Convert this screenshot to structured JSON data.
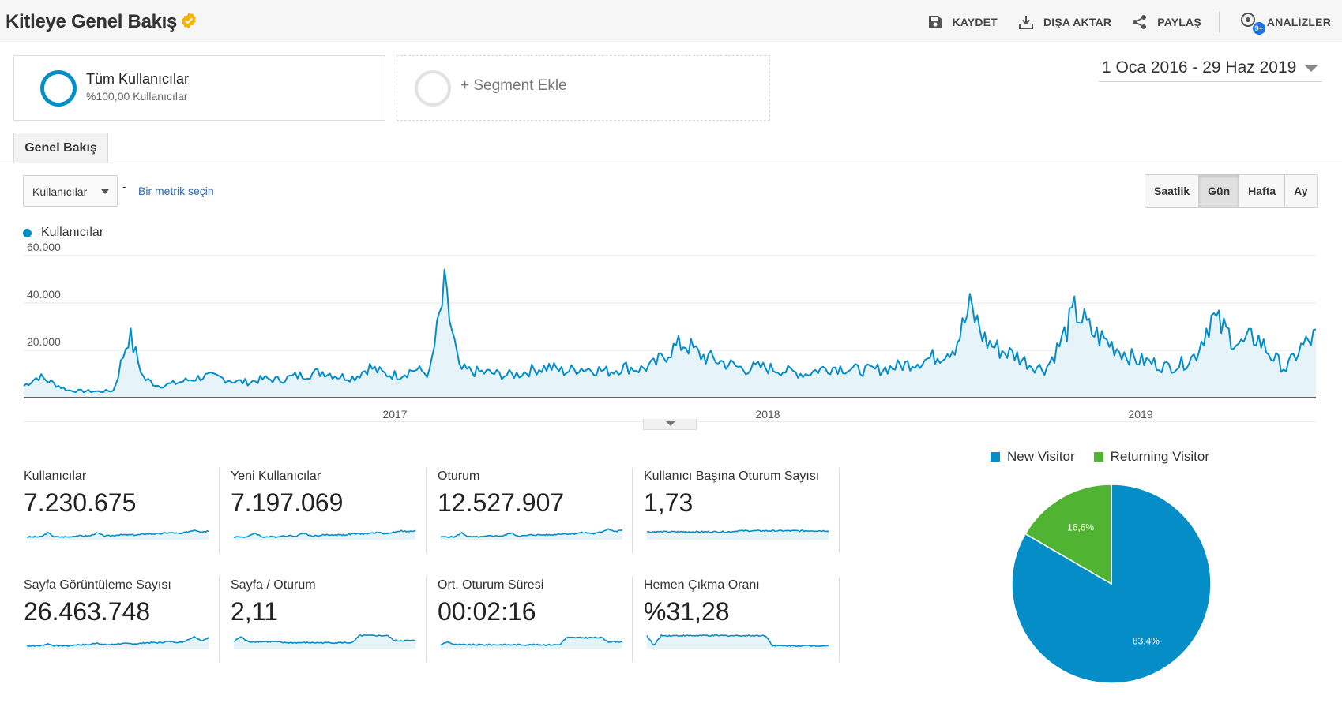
{
  "header": {
    "title": "Kitleye Genel Bakış",
    "actions": {
      "save": "KAYDET",
      "export": "DIŞA AKTAR",
      "share": "PAYLAŞ",
      "insights": "ANALİZLER",
      "insights_badge": "9+"
    }
  },
  "segments": {
    "primary": {
      "name": "Tüm Kullanıcılar",
      "detail": "%100,00 Kullanıcılar"
    },
    "add": "+ Segment Ekle"
  },
  "date_range": "1 Oca 2016 - 29 Haz 2019",
  "tabs": [
    "Genel Bakış"
  ],
  "metric_selector": {
    "value": "Kullanıcılar",
    "separator": "-",
    "pick_label": "Bir metrik seçin"
  },
  "granularity": {
    "options": [
      "Saatlik",
      "Gün",
      "Hafta",
      "Ay"
    ],
    "selected": "Gün"
  },
  "colors": {
    "accent": "#058dc7",
    "returning": "#50b432"
  },
  "chart_data": [
    {
      "type": "area",
      "series": [
        {
          "name": "Kullanıcılar",
          "values": [
            5000,
            9000,
            6000,
            3000,
            2800,
            2600,
            3000,
            27000,
            8000,
            5000,
            6000,
            7500,
            9000,
            8500,
            7000,
            6500,
            8000,
            7500,
            9000,
            10000,
            11000,
            9000,
            8500,
            13000,
            10000,
            9500,
            12000,
            10000,
            45000,
            12000,
            11000,
            10500,
            9500,
            10000,
            12000,
            13000,
            11000,
            12500,
            12000,
            11000,
            13000,
            12000,
            14000,
            20000,
            23000,
            18000,
            16000,
            14000,
            12000,
            13000,
            12000,
            11000,
            10000,
            12000,
            13000,
            12000,
            11500,
            12000,
            13000,
            14500,
            16000,
            18000,
            22000,
            38000,
            24000,
            20000,
            18000,
            14000,
            12000,
            23000,
            37000,
            28000,
            24000,
            20000,
            16000,
            15000,
            13000,
            14000,
            18000,
            34000,
            28000,
            22000,
            26000,
            18000,
            12000,
            21000,
            26000
          ]
        }
      ],
      "yticks": [
        "60.000",
        "40.000",
        "20.000"
      ],
      "ylim": [
        0,
        60000
      ],
      "xticks": [
        "2017",
        "2018",
        "2019"
      ]
    },
    {
      "type": "pie",
      "series": [
        {
          "name": "New Visitor",
          "value": 83.4,
          "label": "83,4%",
          "color": "#058dc7"
        },
        {
          "name": "Returning Visitor",
          "value": 16.6,
          "label": "16,6%",
          "color": "#50b432"
        }
      ]
    }
  ],
  "metrics": [
    {
      "label": "Kullanıcılar",
      "value": "7.230.675",
      "spark": [
        2,
        2,
        2,
        6,
        2,
        2,
        2,
        3,
        3,
        3,
        6,
        3,
        3,
        4,
        4,
        4,
        4,
        5,
        5,
        5,
        6,
        6,
        5,
        7,
        9,
        7,
        8
      ]
    },
    {
      "label": "Yeni Kullanıcılar",
      "value": "7.197.069",
      "spark": [
        2,
        2,
        2,
        6,
        2,
        2,
        2,
        3,
        3,
        3,
        6,
        3,
        3,
        4,
        4,
        4,
        4,
        5,
        5,
        5,
        6,
        6,
        5,
        7,
        8,
        7,
        8
      ]
    },
    {
      "label": "Oturum",
      "value": "12.527.907",
      "spark": [
        2,
        2,
        2,
        6,
        2,
        2,
        2,
        3,
        3,
        3,
        6,
        3,
        3,
        4,
        4,
        4,
        4,
        5,
        5,
        5,
        6,
        6,
        5,
        7,
        10,
        7,
        9
      ]
    },
    {
      "label": "Kullanıcı Başına Oturum Sayısı",
      "value": "1,73",
      "spark": [
        7,
        7,
        7,
        7,
        7,
        7,
        7,
        7,
        7,
        7,
        7,
        7,
        7,
        8,
        8,
        8,
        8,
        8,
        8,
        8,
        8,
        8,
        8,
        8,
        8,
        8,
        8
      ]
    },
    {
      "label": "Sayfa Görüntüleme Sayısı",
      "value": "26.463.748",
      "spark": [
        2,
        2,
        2,
        4,
        2,
        2,
        2,
        3,
        3,
        3,
        5,
        3,
        3,
        4,
        4,
        4,
        4,
        5,
        5,
        5,
        6,
        6,
        5,
        8,
        11,
        7,
        10
      ]
    },
    {
      "label": "Sayfa / Oturum",
      "value": "2,11",
      "spark": [
        6,
        11,
        6,
        6,
        6,
        6,
        6,
        5,
        5,
        5,
        5,
        5,
        5,
        5,
        5,
        5,
        5,
        5,
        12,
        12,
        12,
        12,
        12,
        7,
        7,
        7,
        7
      ]
    },
    {
      "label": "Ort. Oturum Süresi",
      "value": "00:02:16",
      "spark": [
        3,
        6,
        3,
        3,
        3,
        3,
        3,
        3,
        3,
        3,
        3,
        3,
        3,
        3,
        3,
        3,
        3,
        3,
        10,
        10,
        10,
        10,
        10,
        10,
        6,
        6,
        6
      ]
    },
    {
      "label": "Hemen Çıkma Oranı",
      "value": "%31,28",
      "spark": [
        12,
        2,
        12,
        12,
        12,
        12,
        12,
        12,
        12,
        12,
        12,
        12,
        12,
        12,
        12,
        12,
        12,
        12,
        2,
        2,
        2,
        2,
        2,
        2,
        2,
        2,
        2
      ]
    }
  ]
}
